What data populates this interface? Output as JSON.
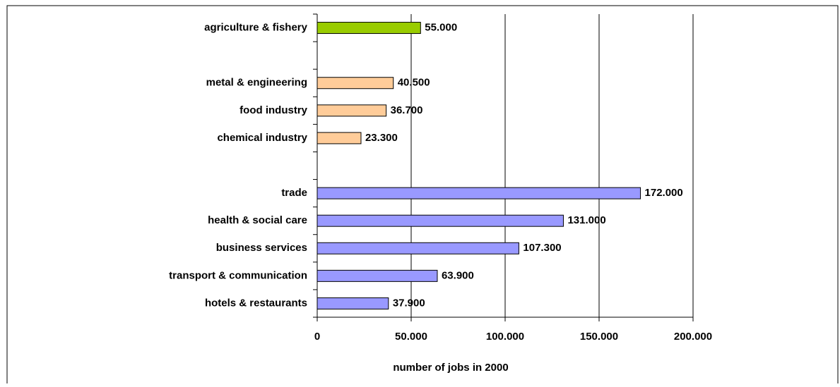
{
  "chart_data": {
    "type": "bar",
    "orientation": "horizontal",
    "x_label": "number of jobs in 2000",
    "categories": [
      "agriculture & fishery",
      null,
      "metal & engineering",
      "food industry",
      "chemical industry",
      null,
      "trade",
      "health & social care",
      "business services",
      "transport & communication",
      "hotels & restaurants"
    ],
    "values": [
      55000,
      null,
      40500,
      36700,
      23300,
      null,
      172000,
      131000,
      107300,
      63900,
      37900
    ],
    "value_labels": [
      "55.000",
      null,
      "40.500",
      "36.700",
      "23.300",
      null,
      "172.000",
      "131.000",
      "107.300",
      "63.900",
      "37.900"
    ],
    "colors": [
      "#99cc00",
      null,
      "#ffcc99",
      "#ffcc99",
      "#ffcc99",
      null,
      "#9999ff",
      "#9999ff",
      "#9999ff",
      "#9999ff",
      "#9999ff"
    ],
    "xlim": [
      0,
      200000
    ],
    "xticks": [
      0,
      {
        "value": 50000,
        "label": "50.000"
      },
      {
        "value": 100000,
        "label": "100.000"
      },
      {
        "value": 150000,
        "label": "150.000"
      },
      {
        "value": 200000,
        "label": "200.000"
      }
    ],
    "grid": true
  }
}
